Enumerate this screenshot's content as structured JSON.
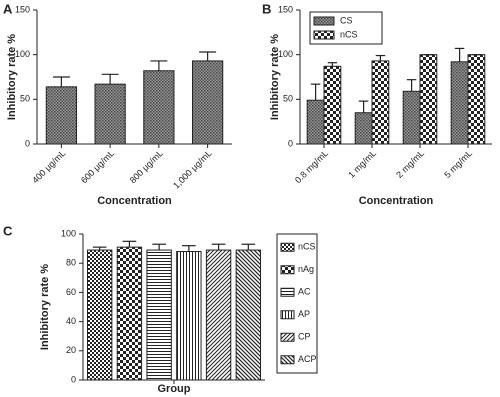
{
  "chart_data": [
    {
      "type": "bar",
      "panel": "A",
      "x_label": "Concentration",
      "y_label": "Inhibitory rate %",
      "categories": [
        "400 μg/mL",
        "600 μg/mL",
        "800 μg/mL",
        "1,000 μg/mL"
      ],
      "values": [
        64,
        67,
        82,
        93
      ],
      "errors": [
        11,
        11,
        11,
        10
      ],
      "pattern": "hatch",
      "ylim": [
        0,
        150
      ],
      "yticks": [
        0,
        50,
        100,
        150
      ]
    },
    {
      "type": "bar",
      "panel": "B",
      "x_label": "Concentration",
      "y_label": "Inhibitory rate %",
      "categories": [
        "0.8 mg/mL",
        "1 mg/mL",
        "2 mg/mL",
        "5 mg/mL"
      ],
      "series": [
        {
          "name": "CS",
          "pattern": "hatch",
          "values": [
            49,
            35,
            59,
            92
          ],
          "errors": [
            18,
            13,
            13,
            15
          ]
        },
        {
          "name": "nCS",
          "pattern": "checker-large",
          "values": [
            87,
            93,
            100,
            100
          ],
          "errors": [
            4,
            6,
            0,
            0
          ]
        }
      ],
      "legend": "upper left",
      "ylim": [
        0,
        150
      ],
      "yticks": [
        0,
        50,
        100,
        150
      ]
    },
    {
      "type": "bar",
      "panel": "C",
      "x_label": "Group",
      "y_label": "Inhibitory rate %",
      "categories": [
        null
      ],
      "series": [
        {
          "name": "nCS",
          "pattern": "checker-small",
          "values": [
            89
          ],
          "errors": [
            2
          ]
        },
        {
          "name": "nAg",
          "pattern": "checker-large",
          "values": [
            91
          ],
          "errors": [
            4
          ]
        },
        {
          "name": "AC",
          "pattern": "hlines",
          "values": [
            89
          ],
          "errors": [
            4
          ]
        },
        {
          "name": "AP",
          "pattern": "vlines",
          "values": [
            88
          ],
          "errors": [
            4
          ]
        },
        {
          "name": "CP",
          "pattern": "diag",
          "values": [
            89
          ],
          "errors": [
            4
          ]
        },
        {
          "name": "ACP",
          "pattern": "antidiag",
          "values": [
            89
          ],
          "errors": [
            4
          ]
        }
      ],
      "legend": "right",
      "ylim": [
        0,
        100
      ],
      "yticks": [
        0,
        20,
        40,
        60,
        80,
        100
      ]
    }
  ]
}
